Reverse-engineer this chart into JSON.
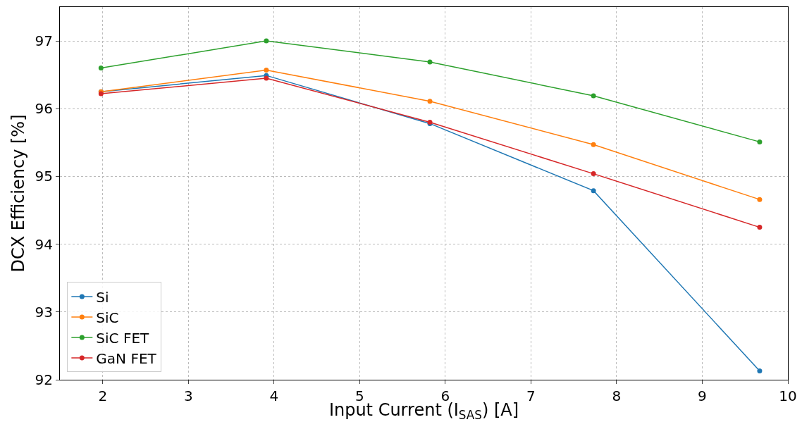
{
  "chart_data": {
    "type": "line",
    "xlabel": "Input Current (I$_{SAS}$) [A]",
    "ylabel": "DCX Efficiency [%]",
    "x": [
      1.98,
      3.91,
      5.82,
      7.73,
      9.67
    ],
    "series": [
      {
        "name": "Si",
        "color": "#1f77b4",
        "values": [
          96.25,
          96.49,
          95.78,
          94.79,
          92.13
        ]
      },
      {
        "name": "SiC",
        "color": "#ff7f0e",
        "values": [
          96.25,
          96.57,
          96.11,
          95.47,
          94.66
        ]
      },
      {
        "name": "SiC FET",
        "color": "#2ca02c",
        "values": [
          96.6,
          97.0,
          96.69,
          96.19,
          95.51
        ]
      },
      {
        "name": "GaN FET",
        "color": "#d62728",
        "values": [
          96.22,
          96.45,
          95.8,
          95.04,
          94.25
        ]
      }
    ],
    "xlim": [
      1.5,
      10
    ],
    "ylim": [
      92,
      97.5
    ],
    "xticks": [
      2,
      3,
      4,
      5,
      6,
      7,
      8,
      9,
      10
    ],
    "yticks": [
      92,
      93,
      94,
      95,
      96,
      97
    ],
    "grid": true,
    "legend": "bottom left",
    "marker": "circle",
    "line_style": "solid"
  }
}
